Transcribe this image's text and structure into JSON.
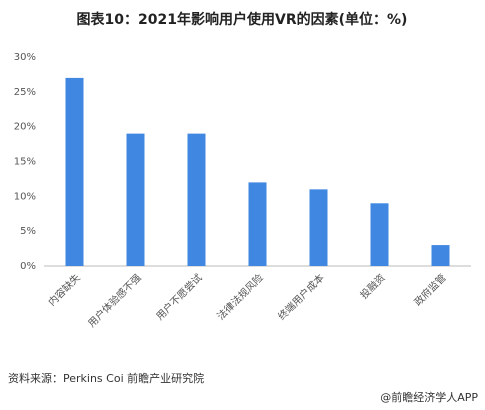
{
  "chart_data": {
    "type": "bar",
    "title": "图表10：2021年影响用户使用VR的因素(单位：%)",
    "categories": [
      "内容缺失",
      "用户体验感不强",
      "用户不愿尝试",
      "法律法规风险",
      "终端用户成本",
      "投融资",
      "政府监管"
    ],
    "values": [
      27,
      19,
      19,
      12,
      11,
      9,
      3
    ],
    "color": "#3f87e0",
    "ylim": [
      0,
      30
    ],
    "yticks": [
      {
        "value": 0,
        "label": "0%"
      },
      {
        "value": 5,
        "label": "5%"
      },
      {
        "value": 10,
        "label": "10%"
      },
      {
        "value": 15,
        "label": "15%"
      },
      {
        "value": 20,
        "label": "20%"
      },
      {
        "value": 25,
        "label": "25%"
      },
      {
        "value": 30,
        "label": "30%"
      }
    ],
    "grid": false
  },
  "source": "资料来源：Perkins Coi 前瞻产业研究院",
  "footer": "@前瞻经济学人APP"
}
